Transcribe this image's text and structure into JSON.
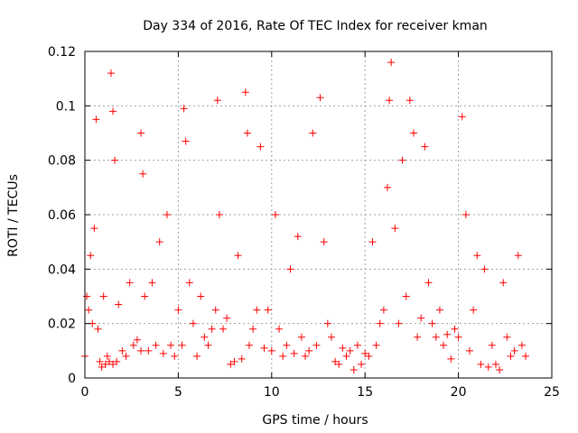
{
  "chart_data": {
    "type": "scatter",
    "title": "Day 334 of 2016, Rate Of TEC Index for receiver kman",
    "xlabel": "GPS time / hours",
    "ylabel": "ROTI / TECUs",
    "xlim": [
      0,
      25
    ],
    "ylim": [
      0,
      0.12
    ],
    "xticks": [
      0,
      5,
      10,
      15,
      20,
      25
    ],
    "yticks": [
      0,
      0.02,
      0.04,
      0.06,
      0.08,
      0.1,
      0.12
    ],
    "xtick_labels": [
      "0",
      "5",
      "10",
      "15",
      "20",
      "25"
    ],
    "ytick_labels": [
      "0",
      "0.02",
      "0.04",
      "0.06",
      "0.08",
      "0.1",
      "0.12"
    ],
    "grid": true,
    "marker": "plus",
    "color": "#ff0000",
    "series": [
      {
        "name": "ROTI",
        "x": [
          0.0,
          0.1,
          0.2,
          0.3,
          0.4,
          0.5,
          0.6,
          0.7,
          0.8,
          0.9,
          1.0,
          1.1,
          1.2,
          1.3,
          1.4,
          1.5,
          1.5,
          1.6,
          1.7,
          1.8,
          2.0,
          2.2,
          2.4,
          2.6,
          2.8,
          3.0,
          3.0,
          3.1,
          3.2,
          3.4,
          3.6,
          3.8,
          4.0,
          4.2,
          4.4,
          4.6,
          4.8,
          5.0,
          5.2,
          5.3,
          5.4,
          5.6,
          5.8,
          6.0,
          6.2,
          6.4,
          6.6,
          6.8,
          7.0,
          7.1,
          7.2,
          7.4,
          7.6,
          7.8,
          8.0,
          8.2,
          8.4,
          8.6,
          8.7,
          8.8,
          9.0,
          9.2,
          9.4,
          9.6,
          9.8,
          10.0,
          10.2,
          10.4,
          10.6,
          10.8,
          11.0,
          11.2,
          11.4,
          11.6,
          11.8,
          12.0,
          12.2,
          12.4,
          12.6,
          12.8,
          13.0,
          13.2,
          13.4,
          13.6,
          13.8,
          14.0,
          14.2,
          14.4,
          14.6,
          14.8,
          15.0,
          15.2,
          15.4,
          15.6,
          15.8,
          16.0,
          16.2,
          16.3,
          16.4,
          16.6,
          16.8,
          17.0,
          17.2,
          17.4,
          17.6,
          17.8,
          18.0,
          18.2,
          18.4,
          18.6,
          18.8,
          19.0,
          19.2,
          19.4,
          19.6,
          19.8,
          20.0,
          20.2,
          20.4,
          20.6,
          20.8,
          21.0,
          21.2,
          21.4,
          21.6,
          21.8,
          22.0,
          22.2,
          22.4,
          22.6,
          22.8,
          23.0,
          23.2,
          23.4,
          23.6
        ],
        "y": [
          0.008,
          0.03,
          0.025,
          0.045,
          0.02,
          0.055,
          0.095,
          0.018,
          0.006,
          0.004,
          0.03,
          0.005,
          0.008,
          0.006,
          0.112,
          0.098,
          0.005,
          0.08,
          0.006,
          0.027,
          0.01,
          0.008,
          0.035,
          0.012,
          0.014,
          0.01,
          0.09,
          0.075,
          0.03,
          0.01,
          0.035,
          0.012,
          0.05,
          0.009,
          0.06,
          0.012,
          0.008,
          0.025,
          0.012,
          0.099,
          0.087,
          0.035,
          0.02,
          0.008,
          0.03,
          0.015,
          0.012,
          0.018,
          0.025,
          0.102,
          0.06,
          0.018,
          0.022,
          0.005,
          0.006,
          0.045,
          0.007,
          0.105,
          0.09,
          0.012,
          0.018,
          0.025,
          0.085,
          0.011,
          0.025,
          0.01,
          0.06,
          0.018,
          0.008,
          0.012,
          0.04,
          0.009,
          0.052,
          0.015,
          0.008,
          0.01,
          0.09,
          0.012,
          0.103,
          0.05,
          0.02,
          0.015,
          0.006,
          0.005,
          0.011,
          0.008,
          0.01,
          0.003,
          0.012,
          0.005,
          0.009,
          0.008,
          0.05,
          0.012,
          0.02,
          0.025,
          0.07,
          0.102,
          0.116,
          0.055,
          0.02,
          0.08,
          0.03,
          0.102,
          0.09,
          0.015,
          0.022,
          0.085,
          0.035,
          0.02,
          0.015,
          0.025,
          0.012,
          0.016,
          0.007,
          0.018,
          0.015,
          0.096,
          0.06,
          0.01,
          0.025,
          0.045,
          0.005,
          0.04,
          0.004,
          0.012,
          0.005,
          0.003,
          0.035,
          0.015,
          0.008,
          0.01,
          0.045,
          0.012,
          0.008
        ]
      }
    ]
  }
}
